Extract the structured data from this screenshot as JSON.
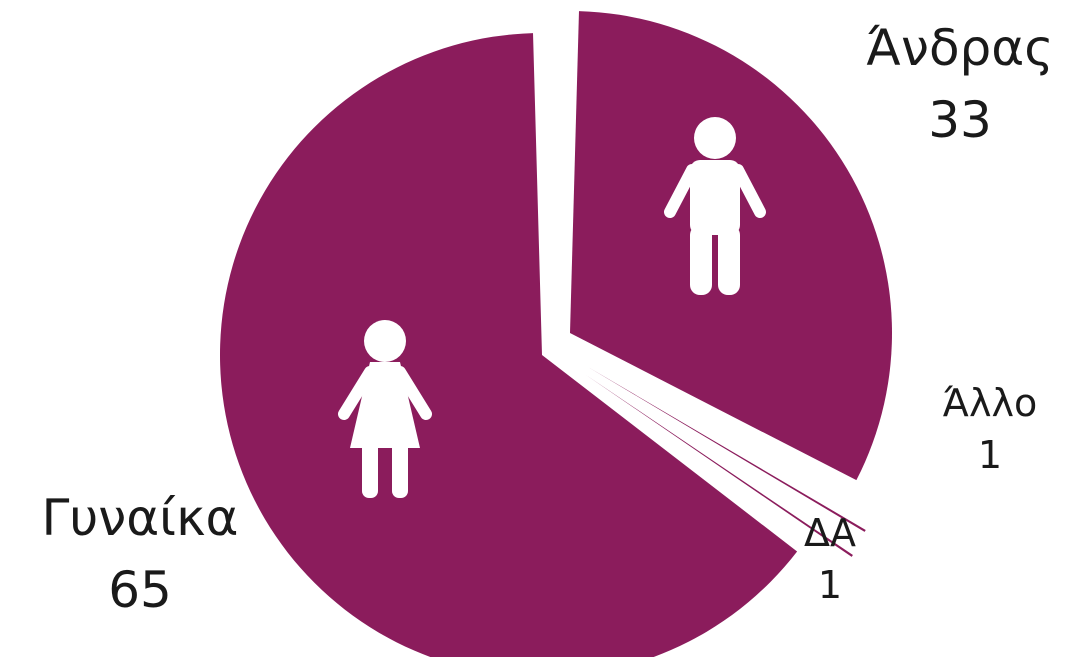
{
  "chart_data": {
    "type": "pie",
    "categories": [
      "Άνδρας",
      "Άλλο",
      "ΔΑ",
      "Γυναίκα"
    ],
    "values": [
      33,
      1,
      1,
      65
    ],
    "colors": {
      "slice": "#8b1c5c",
      "icon": "#ffffff",
      "label_text": "#1a1a1a",
      "background": "#ffffff"
    },
    "icons": {
      "Άνδρας": "man-icon",
      "Γυναίκα": "woman-icon"
    },
    "title": "",
    "legend": "none"
  }
}
